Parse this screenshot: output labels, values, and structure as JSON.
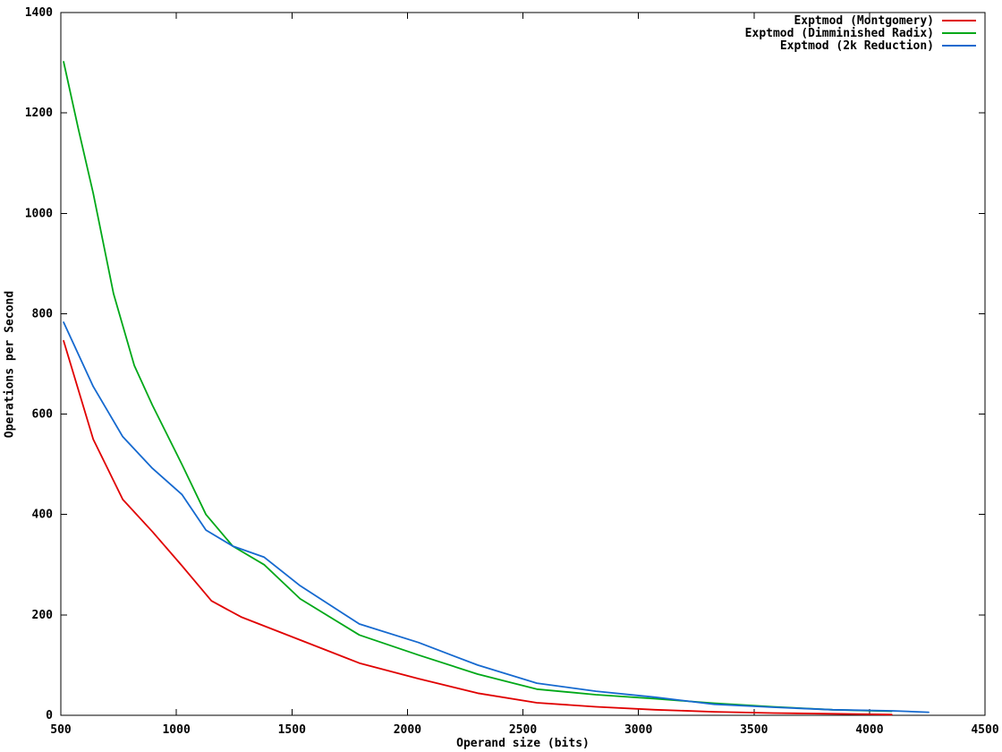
{
  "chart_data": {
    "type": "line",
    "title": "",
    "xlabel": "Operand size (bits)",
    "ylabel": "Operations per Second",
    "xlim": [
      500,
      4500
    ],
    "ylim": [
      0,
      1400
    ],
    "xticks": [
      500,
      1000,
      1500,
      2000,
      2500,
      3000,
      3500,
      4000,
      4500
    ],
    "yticks": [
      0,
      200,
      400,
      600,
      800,
      1000,
      1200,
      1400
    ],
    "grid": false,
    "legend_position": "top-right-inside",
    "background_color": "#ffffff",
    "axis_color": "#000000",
    "series": [
      {
        "name": "Exptmod (Montgomery)",
        "color": "#e00000",
        "points": [
          [
            512,
            746
          ],
          [
            640,
            550
          ],
          [
            768,
            430
          ],
          [
            896,
            366
          ],
          [
            1024,
            298
          ],
          [
            1152,
            228
          ],
          [
            1280,
            196
          ],
          [
            1536,
            150
          ],
          [
            1792,
            104
          ],
          [
            2048,
            73
          ],
          [
            2304,
            44
          ],
          [
            2560,
            25
          ],
          [
            2816,
            17
          ],
          [
            3072,
            11
          ],
          [
            3328,
            7
          ],
          [
            3584,
            4.5
          ],
          [
            3840,
            3
          ],
          [
            4096,
            1.5
          ]
        ]
      },
      {
        "name": "Exptmod (Dimminished Radix)",
        "color": "#00a818",
        "points": [
          [
            512,
            1302
          ],
          [
            576,
            1168
          ],
          [
            640,
            1040
          ],
          [
            728,
            840
          ],
          [
            818,
            697
          ],
          [
            896,
            618
          ],
          [
            1024,
            500
          ],
          [
            1128,
            400
          ],
          [
            1244,
            337
          ],
          [
            1380,
            300
          ],
          [
            1536,
            232
          ],
          [
            1792,
            160
          ],
          [
            2048,
            120
          ],
          [
            2304,
            82
          ],
          [
            2560,
            52
          ],
          [
            2816,
            41
          ],
          [
            3072,
            33
          ],
          [
            3328,
            24
          ],
          [
            3584,
            17
          ],
          [
            3840,
            11
          ],
          [
            4096,
            8
          ]
        ]
      },
      {
        "name": "Exptmod (2k Reduction)",
        "color": "#1569cf",
        "points": [
          [
            512,
            783
          ],
          [
            640,
            655
          ],
          [
            768,
            555
          ],
          [
            896,
            492
          ],
          [
            1024,
            440
          ],
          [
            1128,
            369
          ],
          [
            1244,
            337
          ],
          [
            1380,
            315
          ],
          [
            1536,
            258
          ],
          [
            1792,
            182
          ],
          [
            2048,
            145
          ],
          [
            2304,
            100
          ],
          [
            2560,
            64
          ],
          [
            2816,
            48
          ],
          [
            3072,
            36
          ],
          [
            3328,
            22
          ],
          [
            3584,
            16
          ],
          [
            3840,
            11
          ],
          [
            4096,
            9
          ],
          [
            4256,
            6
          ]
        ]
      }
    ]
  }
}
